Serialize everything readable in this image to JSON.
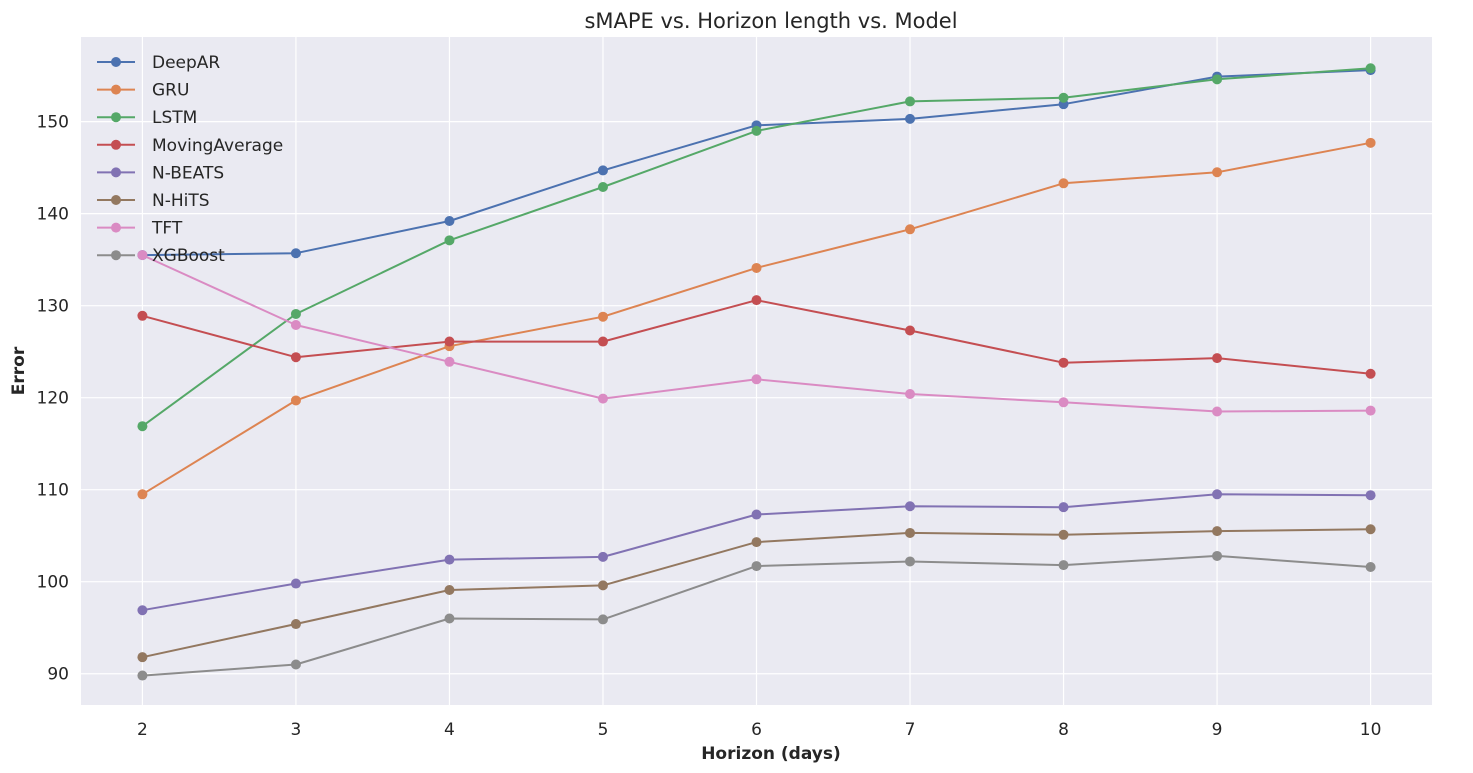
{
  "chart_data": {
    "type": "line",
    "title": "sMAPE vs. Horizon length vs. Model",
    "xlabel": "Horizon (days)",
    "ylabel": "Error",
    "x": [
      2,
      3,
      4,
      5,
      6,
      7,
      8,
      9,
      10
    ],
    "xlim": [
      1.6,
      10.4
    ],
    "ylim": [
      86.6,
      159.2
    ],
    "yticks": [
      90,
      100,
      110,
      120,
      130,
      140,
      150
    ],
    "grid": true,
    "legend_position": "top-left",
    "series": [
      {
        "name": "DeepAR",
        "color": "#4c72b0",
        "values": [
          135.5,
          135.7,
          139.2,
          144.7,
          149.6,
          150.3,
          151.9,
          154.9,
          155.6
        ]
      },
      {
        "name": "GRU",
        "color": "#dd8452",
        "values": [
          109.5,
          119.7,
          125.6,
          128.8,
          134.1,
          138.3,
          143.3,
          144.5,
          147.7
        ]
      },
      {
        "name": "LSTM",
        "color": "#55a868",
        "values": [
          116.9,
          129.1,
          137.1,
          142.9,
          149.0,
          152.2,
          152.6,
          154.6,
          155.8
        ]
      },
      {
        "name": "MovingAverage",
        "color": "#c44e52",
        "values": [
          128.9,
          124.4,
          126.1,
          126.1,
          130.6,
          127.3,
          123.8,
          124.3,
          122.6
        ]
      },
      {
        "name": "N-BEATS",
        "color": "#8172b3",
        "values": [
          96.9,
          99.8,
          102.4,
          102.7,
          107.3,
          108.2,
          108.1,
          109.5,
          109.4
        ]
      },
      {
        "name": "N-HiTS",
        "color": "#937860",
        "values": [
          91.8,
          95.4,
          99.1,
          99.6,
          104.3,
          105.3,
          105.1,
          105.5,
          105.7
        ]
      },
      {
        "name": "TFT",
        "color": "#da8bc3",
        "values": [
          135.5,
          127.9,
          123.9,
          119.9,
          122.0,
          120.4,
          119.5,
          118.5,
          118.6
        ]
      },
      {
        "name": "XGBoost",
        "color": "#8c8c8c",
        "values": [
          89.8,
          91.0,
          96.0,
          95.9,
          101.7,
          102.2,
          101.8,
          102.8,
          101.6
        ]
      }
    ]
  }
}
